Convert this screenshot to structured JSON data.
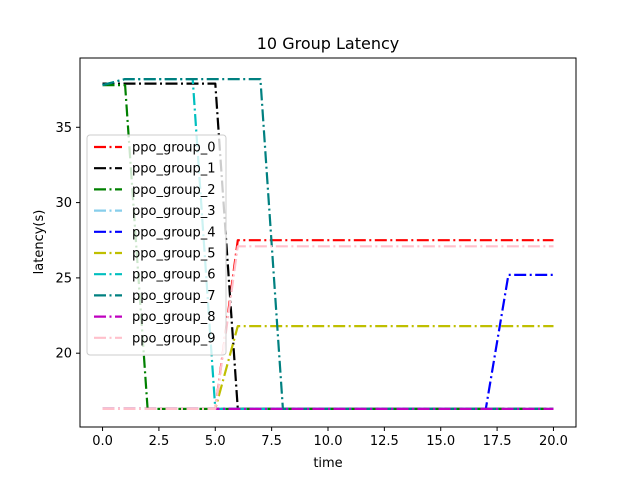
{
  "chart_data": {
    "type": "line",
    "title": "10 Group Latency",
    "xlabel": "time",
    "ylabel": "latency(s)",
    "xlim": [
      -1,
      21
    ],
    "ylim": [
      15.1,
      39.6
    ],
    "xticks": [
      0.0,
      2.5,
      5.0,
      7.5,
      10.0,
      12.5,
      15.0,
      17.5,
      20.0
    ],
    "xtick_labels": [
      "0.0",
      "2.5",
      "5.0",
      "7.5",
      "10.0",
      "12.5",
      "15.0",
      "17.5",
      "20.0"
    ],
    "yticks": [
      20,
      25,
      30,
      35
    ],
    "ytick_labels": [
      "20",
      "25",
      "30",
      "35"
    ],
    "grid": false,
    "legend_position": "center-left",
    "line_style": "dashdot",
    "x": [
      0,
      1,
      2,
      3,
      4,
      5,
      6,
      7,
      8,
      9,
      10,
      11,
      12,
      13,
      14,
      15,
      16,
      17,
      18,
      19,
      20
    ],
    "series": [
      {
        "name": "ppo_group_0",
        "color": "#ff0000",
        "values": [
          16.3,
          16.3,
          16.3,
          16.3,
          16.3,
          16.3,
          27.5,
          27.5,
          27.5,
          27.5,
          27.5,
          27.5,
          27.5,
          27.5,
          27.5,
          27.5,
          27.5,
          27.5,
          27.5,
          27.5,
          27.5
        ]
      },
      {
        "name": "ppo_group_1",
        "color": "#000000",
        "values": [
          37.9,
          37.9,
          37.9,
          37.9,
          37.9,
          37.9,
          16.3,
          16.3,
          16.3,
          16.3,
          16.3,
          16.3,
          16.3,
          16.3,
          16.3,
          16.3,
          16.3,
          16.3,
          16.3,
          16.3,
          16.3
        ]
      },
      {
        "name": "ppo_group_2",
        "color": "#008000",
        "values": [
          37.8,
          37.8,
          16.3,
          16.3,
          16.3,
          16.3,
          16.3,
          16.3,
          16.3,
          16.3,
          16.3,
          16.3,
          16.3,
          16.3,
          16.3,
          16.3,
          16.3,
          16.3,
          16.3,
          16.3,
          16.3
        ]
      },
      {
        "name": "ppo_group_3",
        "color": "#87ceeb",
        "values": [
          16.3,
          16.3,
          16.3,
          16.3,
          16.3,
          16.3,
          16.3,
          16.3,
          16.3,
          16.3,
          16.3,
          16.3,
          16.3,
          16.3,
          16.3,
          16.3,
          16.3,
          16.3,
          16.3,
          16.3,
          16.3
        ]
      },
      {
        "name": "ppo_group_4",
        "color": "#0000ff",
        "values": [
          16.3,
          16.3,
          16.3,
          16.3,
          16.3,
          16.3,
          16.3,
          16.3,
          16.3,
          16.3,
          16.3,
          16.3,
          16.3,
          16.3,
          16.3,
          16.3,
          16.3,
          16.3,
          25.2,
          25.2,
          25.2
        ]
      },
      {
        "name": "ppo_group_5",
        "color": "#bfbf00",
        "values": [
          16.3,
          16.3,
          16.3,
          16.3,
          16.3,
          16.3,
          21.8,
          21.8,
          21.8,
          21.8,
          21.8,
          21.8,
          21.8,
          21.8,
          21.8,
          21.8,
          21.8,
          21.8,
          21.8,
          21.8,
          21.8
        ]
      },
      {
        "name": "ppo_group_6",
        "color": "#00bfbf",
        "values": [
          37.8,
          38.2,
          38.2,
          38.2,
          38.2,
          16.3,
          16.3,
          16.3,
          16.3,
          16.3,
          16.3,
          16.3,
          16.3,
          16.3,
          16.3,
          16.3,
          16.3,
          16.3,
          16.3,
          16.3,
          16.3
        ]
      },
      {
        "name": "ppo_group_7",
        "color": "#008080",
        "values": [
          37.8,
          38.2,
          38.2,
          38.2,
          38.2,
          38.2,
          38.2,
          38.2,
          16.3,
          16.3,
          16.3,
          16.3,
          16.3,
          16.3,
          16.3,
          16.3,
          16.3,
          16.3,
          16.3,
          16.3,
          16.3
        ]
      },
      {
        "name": "ppo_group_8",
        "color": "#bf00bf",
        "values": [
          16.3,
          16.3,
          16.3,
          16.3,
          16.3,
          16.3,
          16.3,
          16.3,
          16.3,
          16.3,
          16.3,
          16.3,
          16.3,
          16.3,
          16.3,
          16.3,
          16.3,
          16.3,
          16.3,
          16.3,
          16.3
        ]
      },
      {
        "name": "ppo_group_9",
        "color": "#ffc0cb",
        "values": [
          16.3,
          16.3,
          16.3,
          16.3,
          16.3,
          16.3,
          27.1,
          27.1,
          27.1,
          27.1,
          27.1,
          27.1,
          27.1,
          27.1,
          27.1,
          27.1,
          27.1,
          27.1,
          27.1,
          27.1,
          27.1
        ]
      }
    ]
  }
}
